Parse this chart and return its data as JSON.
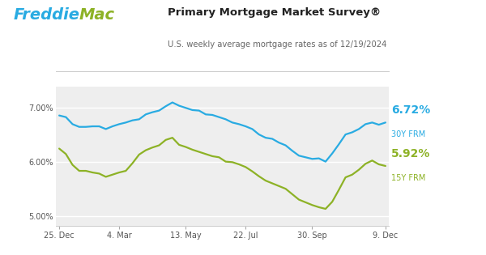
{
  "title": "Primary Mortgage Market Survey®",
  "subtitle": "U.S. weekly average mortgage rates as of 12/19/2024",
  "plot_bg": "#eeeeee",
  "line_30y_color": "#29abe2",
  "line_15y_color": "#8db226",
  "label_30y": "6.72%",
  "label_30y_sub": "30Y FRM",
  "label_15y": "5.92%",
  "label_15y_sub": "15Y FRM",
  "freddie_blue": "#29abe2",
  "freddie_green": "#8db226",
  "freddie_dark": "#333333",
  "x_tick_labels": [
    "25. Dec",
    "4. Mar",
    "13. May",
    "22. Jul",
    "30. Sep",
    "9. Dec"
  ],
  "yticks": [
    5.0,
    6.0,
    7.0
  ],
  "ytick_labels": [
    "5.00%",
    "6.00%",
    "7.00%"
  ],
  "ylim": [
    4.82,
    7.38
  ],
  "xlim_left": -0.5,
  "x_tick_positions": [
    0,
    9,
    19,
    28,
    38,
    49
  ],
  "line_30y": [
    6.85,
    6.82,
    6.69,
    6.64,
    6.64,
    6.65,
    6.65,
    6.6,
    6.65,
    6.69,
    6.72,
    6.76,
    6.78,
    6.87,
    6.91,
    6.94,
    7.02,
    7.09,
    7.03,
    6.99,
    6.95,
    6.94,
    6.87,
    6.86,
    6.82,
    6.78,
    6.72,
    6.69,
    6.65,
    6.6,
    6.5,
    6.44,
    6.42,
    6.35,
    6.3,
    6.2,
    6.11,
    6.08,
    6.05,
    6.06,
    6.0,
    6.15,
    6.32,
    6.5,
    6.54,
    6.6,
    6.69,
    6.72,
    6.68,
    6.72
  ],
  "line_15y": [
    6.24,
    6.14,
    5.94,
    5.83,
    5.83,
    5.8,
    5.78,
    5.72,
    5.76,
    5.8,
    5.83,
    5.97,
    6.13,
    6.21,
    6.26,
    6.3,
    6.4,
    6.44,
    6.31,
    6.27,
    6.22,
    6.18,
    6.14,
    6.1,
    6.08,
    6.0,
    5.99,
    5.95,
    5.9,
    5.82,
    5.73,
    5.65,
    5.6,
    5.55,
    5.5,
    5.4,
    5.3,
    5.25,
    5.2,
    5.16,
    5.13,
    5.26,
    5.48,
    5.71,
    5.76,
    5.85,
    5.96,
    6.02,
    5.95,
    5.92
  ]
}
